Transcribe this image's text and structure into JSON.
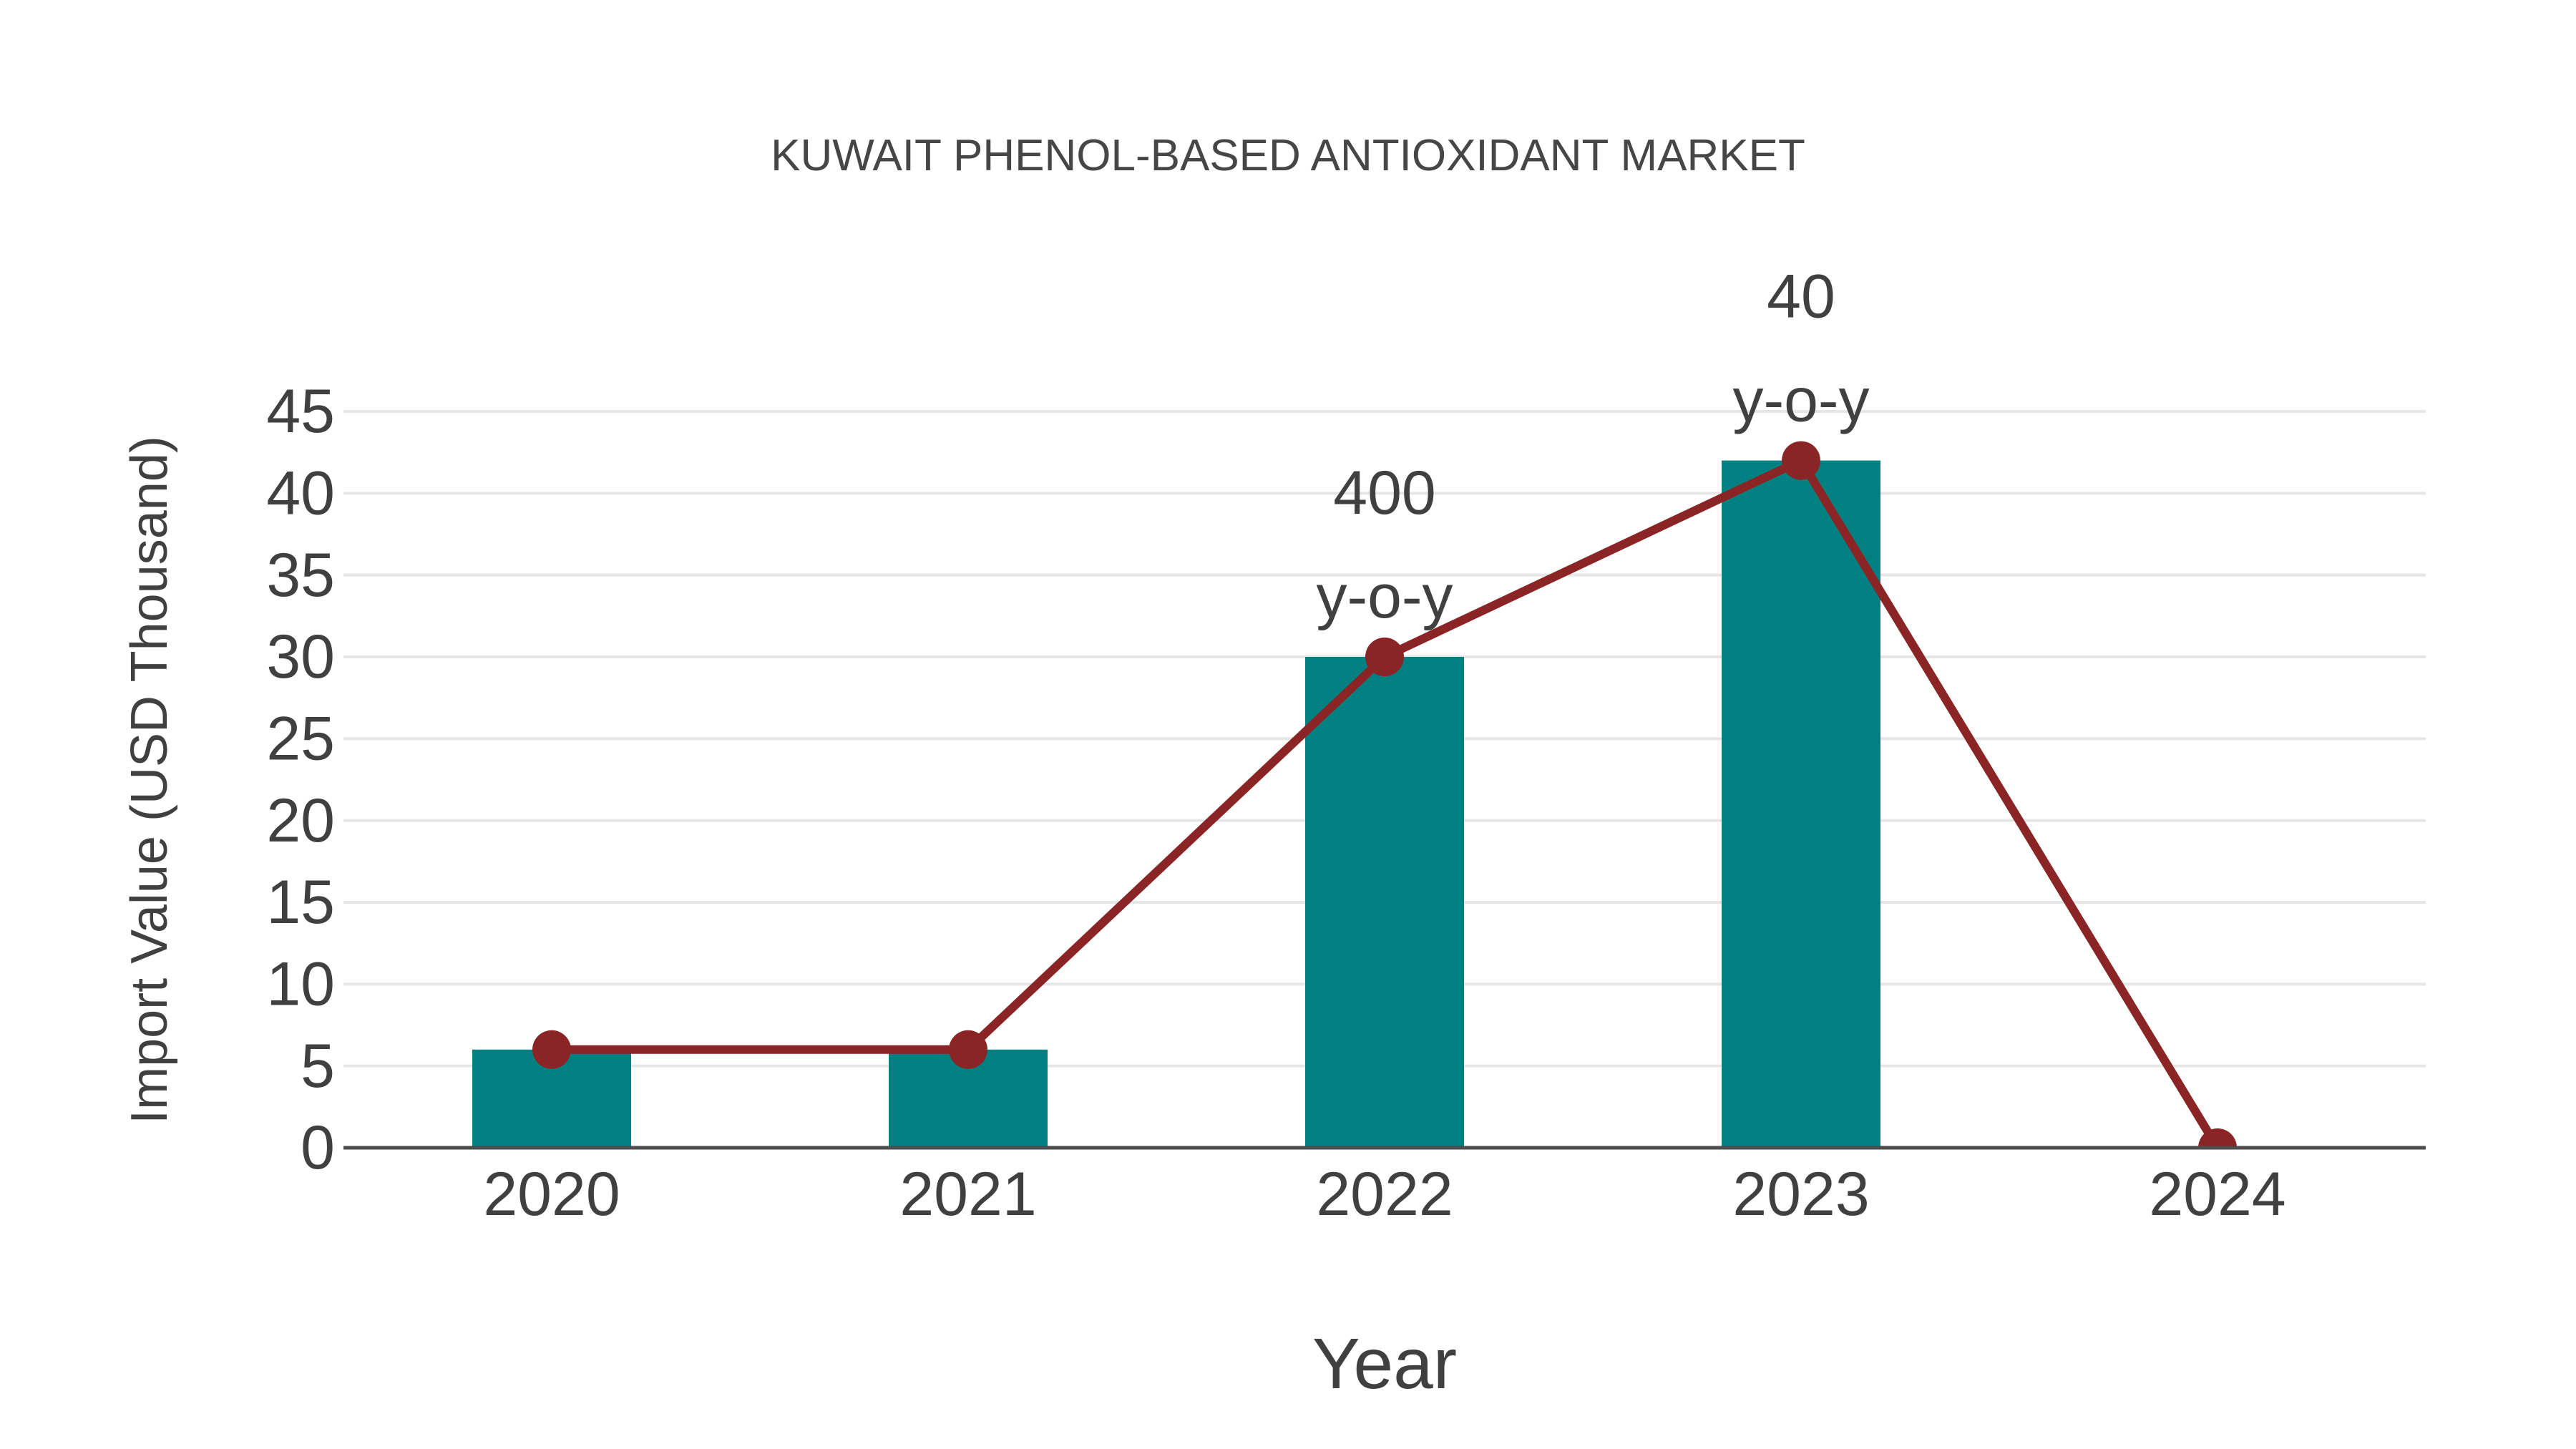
{
  "chart_data": {
    "type": "bar",
    "title": "KUWAIT PHENOL-BASED ANTIOXIDANT MARKET",
    "xlabel": "Year",
    "ylabel": "Import Value (USD Thousand)",
    "categories": [
      "2020",
      "2021",
      "2022",
      "2023",
      "2024"
    ],
    "series": [
      {
        "name": "import-value-bars",
        "type": "bar",
        "values": [
          6,
          6,
          30,
          42,
          0
        ]
      },
      {
        "name": "import-value-trend-line",
        "type": "line",
        "values": [
          6,
          6,
          30,
          42,
          0
        ]
      }
    ],
    "annotations": [
      {
        "category": "2022",
        "lines": [
          "400",
          "y-o-y"
        ]
      },
      {
        "category": "2023",
        "lines": [
          "40",
          "y-o-y"
        ]
      }
    ],
    "ylim": [
      0,
      45
    ],
    "ytick_step": 5,
    "yticks": [
      0,
      5,
      10,
      15,
      20,
      25,
      30,
      35,
      40,
      45
    ],
    "grid": "horizontal",
    "legend": "none",
    "colors": {
      "bar": "#008080",
      "line": "#8b2424",
      "marker": "#8b2424",
      "grid": "#e6e6e6",
      "axis": "#4d4d4d",
      "text": "#404040",
      "title": "#464646",
      "background": "#ffffff"
    }
  }
}
